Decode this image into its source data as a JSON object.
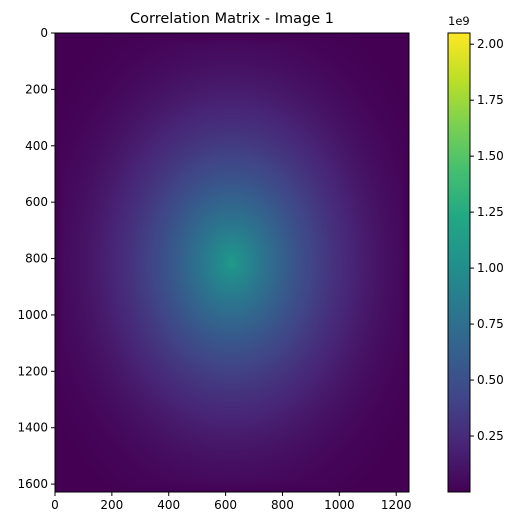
{
  "chart_data": {
    "type": "heatmap",
    "title": "Correlation Matrix - Image 1",
    "xlabel": "",
    "ylabel": "",
    "xlim": [
      0,
      1245
    ],
    "ylim": [
      1628,
      0
    ],
    "x_ticks": [
      0,
      200,
      400,
      600,
      800,
      1000,
      1200
    ],
    "x_tick_labels": [
      "0",
      "200",
      "400",
      "600",
      "800",
      "1000",
      "1200"
    ],
    "y_ticks": [
      0,
      200,
      400,
      600,
      800,
      1000,
      1200,
      1400,
      1600
    ],
    "y_tick_labels": [
      "0",
      "200",
      "400",
      "600",
      "800",
      "1000",
      "1200",
      "1400",
      "1600"
    ],
    "peak": {
      "x": 622,
      "y": 814,
      "value": 1100000000
    },
    "colormap": "viridis",
    "colorbar": {
      "range": [
        0,
        2050000000
      ],
      "ticks": [
        250000000,
        500000000,
        750000000,
        1000000000,
        1250000000,
        1500000000,
        1750000000,
        2000000000
      ],
      "tick_labels": [
        "0.25",
        "0.50",
        "0.75",
        "1.00",
        "1.25",
        "1.50",
        "1.75",
        "2.00"
      ],
      "exponent_label": "1e9"
    },
    "grid": false,
    "legend": "none"
  }
}
